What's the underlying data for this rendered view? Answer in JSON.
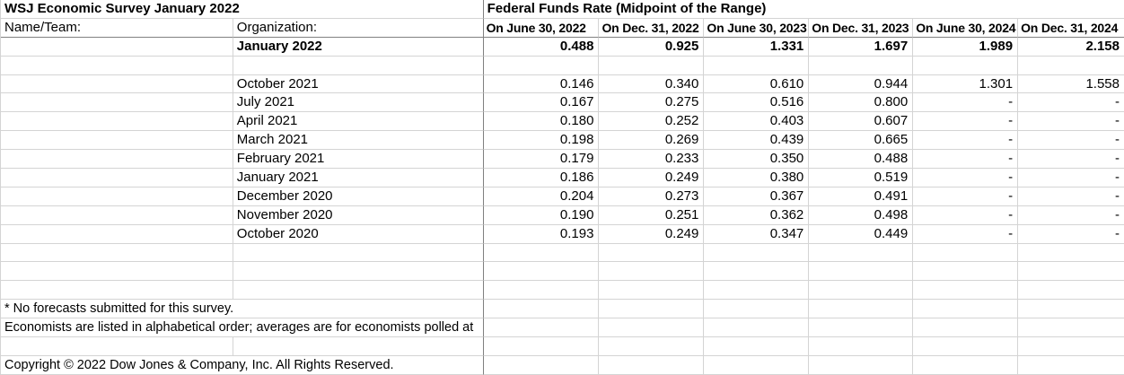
{
  "titles": {
    "survey": "WSJ Economic Survey January 2022",
    "section": "Federal Funds Rate (Midpoint of the Range)"
  },
  "labels": {
    "name_team": "Name/Team:",
    "organization": "Organization:"
  },
  "columns": [
    "On June 30, 2022",
    "On Dec. 31, 2022",
    "On June 30, 2023",
    "On Dec. 31, 2023",
    "On June 30, 2024",
    "On Dec. 31, 2024"
  ],
  "average_row": {
    "label": "January 2022",
    "values": [
      "0.488",
      "0.925",
      "1.331",
      "1.697",
      "1.989",
      "2.158"
    ]
  },
  "history_rows": [
    {
      "label": "October 2021",
      "values": [
        "0.146",
        "0.340",
        "0.610",
        "0.944",
        "1.301",
        "1.558"
      ]
    },
    {
      "label": "July 2021",
      "values": [
        "0.167",
        "0.275",
        "0.516",
        "0.800",
        "-",
        "-"
      ]
    },
    {
      "label": "April 2021",
      "values": [
        "0.180",
        "0.252",
        "0.403",
        "0.607",
        "-",
        "-"
      ]
    },
    {
      "label": "March 2021",
      "values": [
        "0.198",
        "0.269",
        "0.439",
        "0.665",
        "-",
        "-"
      ]
    },
    {
      "label": "February 2021",
      "values": [
        "0.179",
        "0.233",
        "0.350",
        "0.488",
        "-",
        "-"
      ]
    },
    {
      "label": "January 2021",
      "values": [
        "0.186",
        "0.249",
        "0.380",
        "0.519",
        "-",
        "-"
      ]
    },
    {
      "label": "December 2020",
      "values": [
        "0.204",
        "0.273",
        "0.367",
        "0.491",
        "-",
        "-"
      ]
    },
    {
      "label": "November 2020",
      "values": [
        "0.190",
        "0.251",
        "0.362",
        "0.498",
        "-",
        "-"
      ]
    },
    {
      "label": "October 2020",
      "values": [
        "0.193",
        "0.249",
        "0.347",
        "0.449",
        "-",
        "-"
      ]
    }
  ],
  "footnotes": {
    "no_forecasts": "* No forecasts submitted for this survey.",
    "economists": "Economists are listed in alphabetical order; averages are for economists polled at",
    "copyright": "Copyright © 2022 Dow Jones & Company, Inc. All Rights Reserved."
  },
  "colors": {
    "gridline": "#d4d4d4",
    "structural_border": "#808080",
    "text": "#000000",
    "background": "#ffffff"
  }
}
